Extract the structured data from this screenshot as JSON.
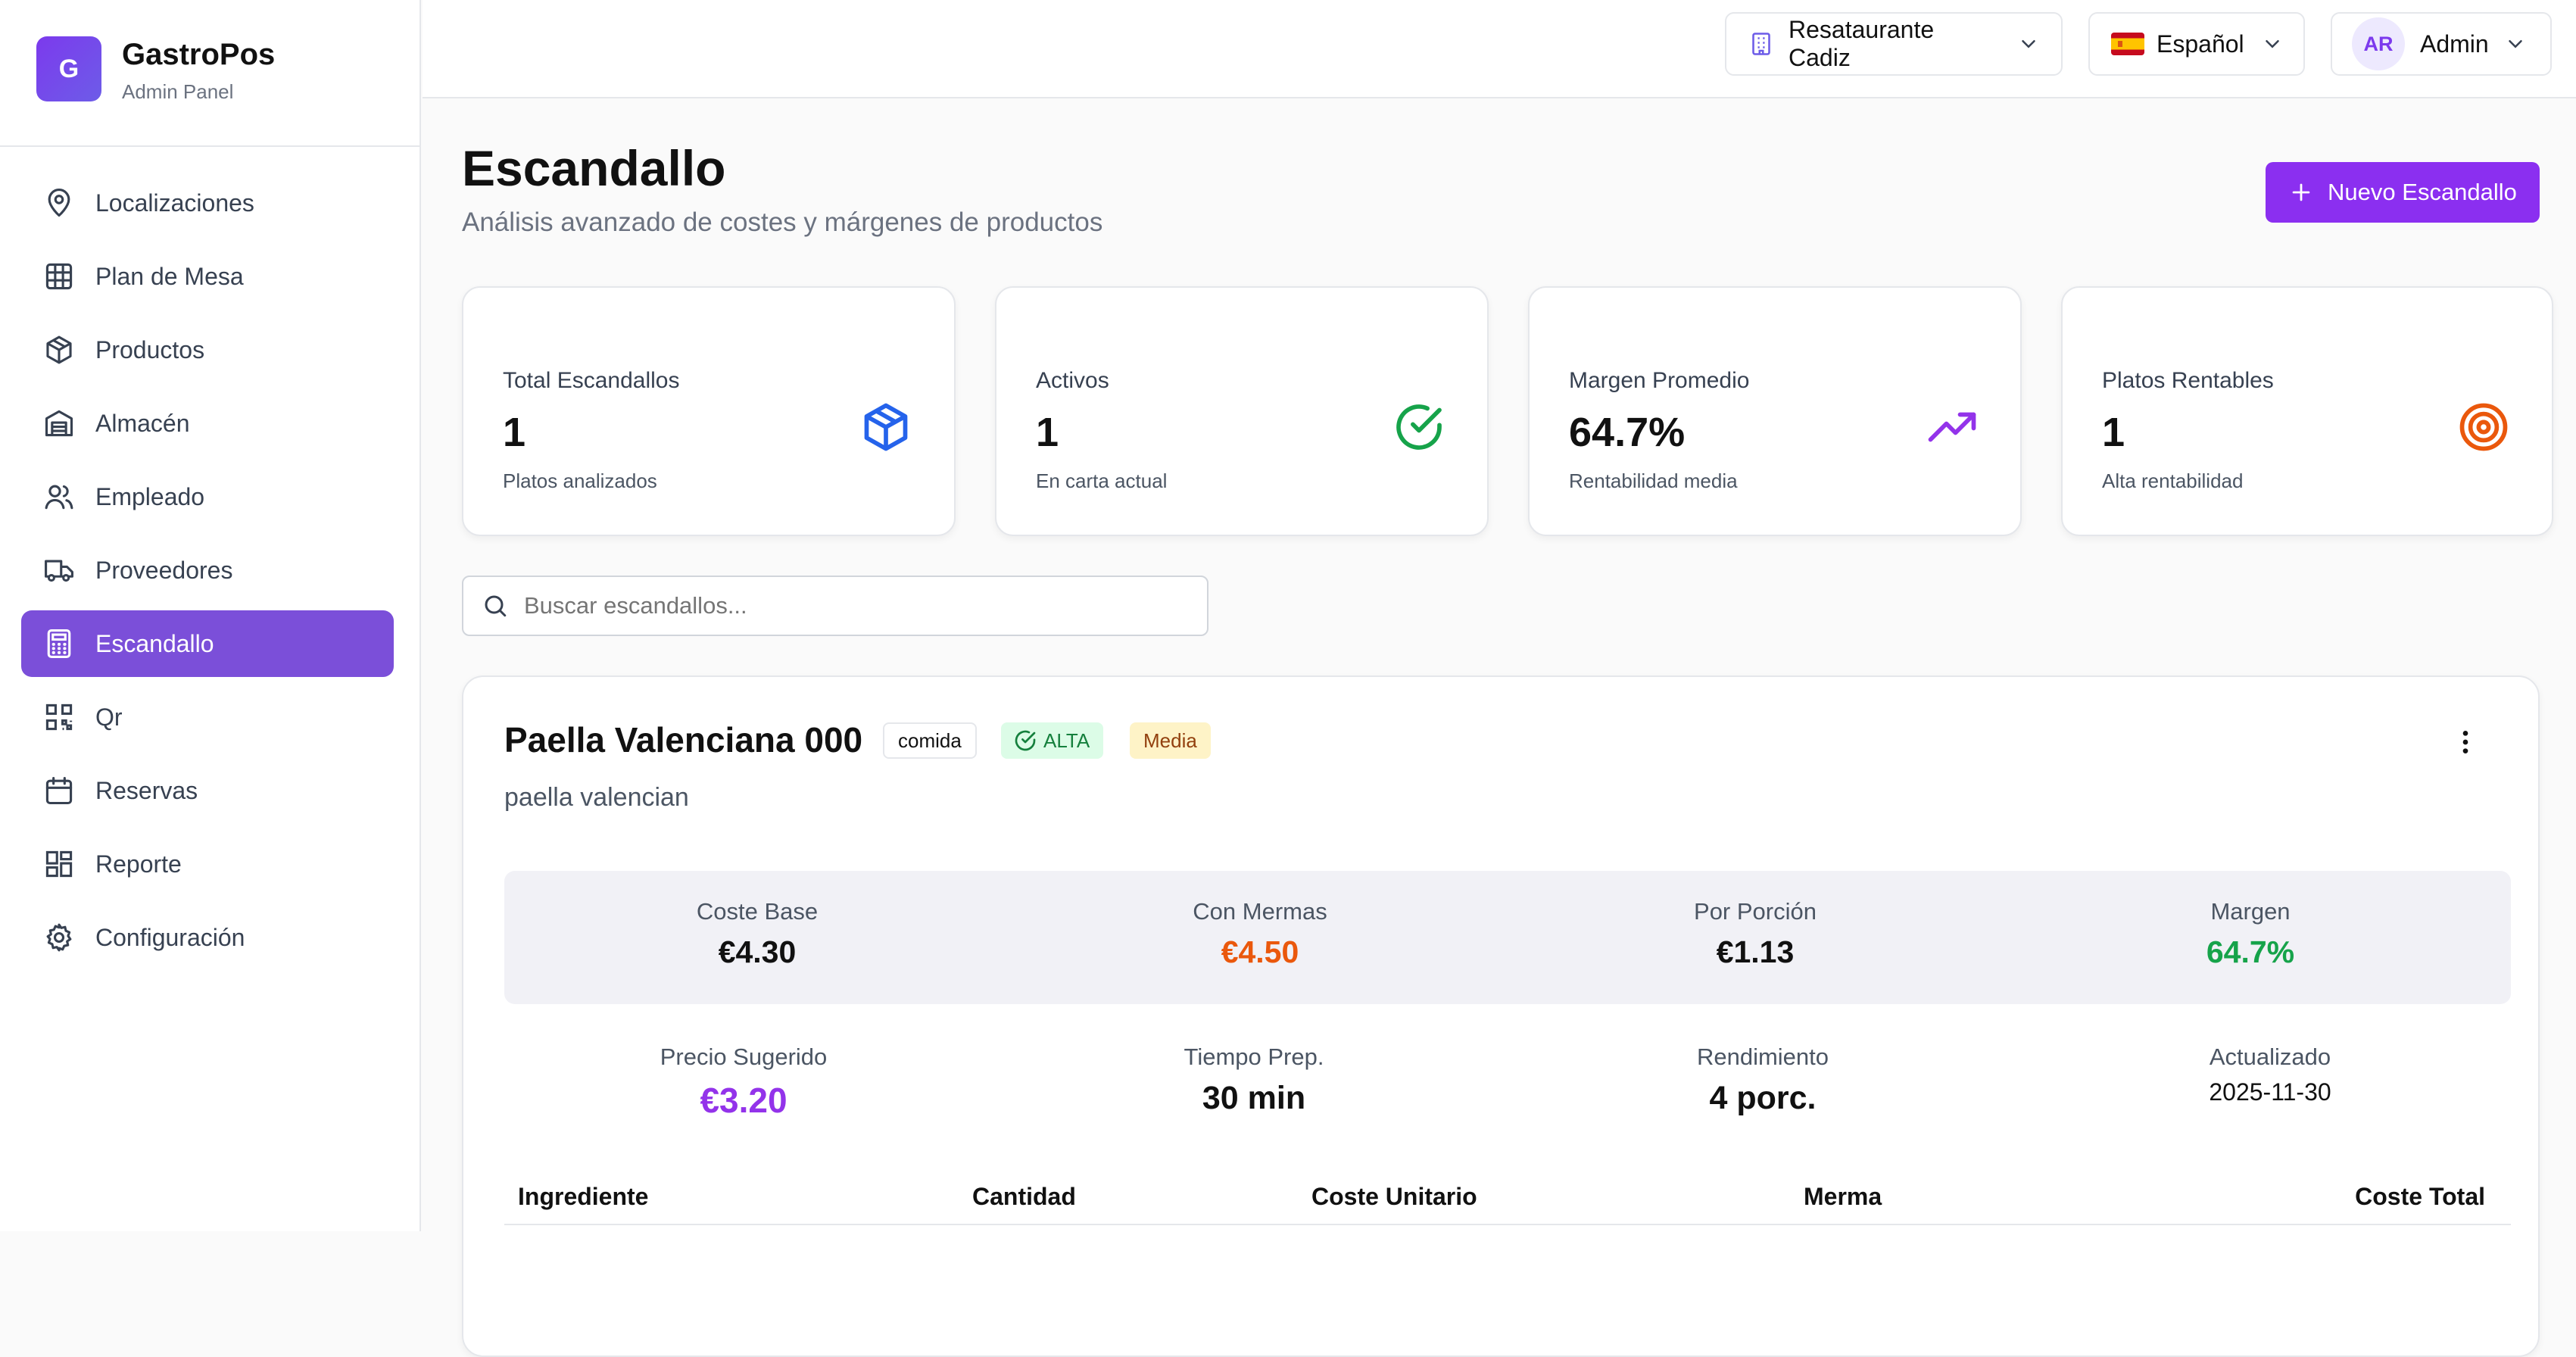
{
  "brand": {
    "logo_letter": "G",
    "name": "GastroPos",
    "subtitle": "Admin Panel"
  },
  "sidebar": {
    "items": [
      {
        "label": "Localizaciones",
        "icon": "map-pin-icon",
        "active": false
      },
      {
        "label": "Plan de Mesa",
        "icon": "grid-icon",
        "active": false
      },
      {
        "label": "Productos",
        "icon": "package-icon",
        "active": false
      },
      {
        "label": "Almacén",
        "icon": "warehouse-icon",
        "active": false
      },
      {
        "label": "Empleado",
        "icon": "users-icon",
        "active": false
      },
      {
        "label": "Proveedores",
        "icon": "truck-icon",
        "active": false
      },
      {
        "label": "Escandallo",
        "icon": "calculator-icon",
        "active": true
      },
      {
        "label": "Qr",
        "icon": "qr-code-icon",
        "active": false
      },
      {
        "label": "Reservas",
        "icon": "calendar-icon",
        "active": false
      },
      {
        "label": "Reporte",
        "icon": "dashboard-icon",
        "active": false
      },
      {
        "label": "Configuración",
        "icon": "gear-icon",
        "active": false
      }
    ]
  },
  "topbar": {
    "restaurant": "Resataurante Cadiz",
    "language": "Español",
    "avatar_initials": "AR",
    "user": "Admin"
  },
  "page": {
    "title": "Escandallo",
    "subtitle": "Análisis avanzado de costes y márgenes de productos",
    "new_button": "Nuevo Escandallo"
  },
  "stats": [
    {
      "label": "Total Escandallos",
      "value": "1",
      "caption": "Platos analizados",
      "icon": "box-icon",
      "color": "#2563eb"
    },
    {
      "label": "Activos",
      "value": "1",
      "caption": "En carta actual",
      "icon": "check-circle-icon",
      "color": "#16a34a"
    },
    {
      "label": "Margen Promedio",
      "value": "64.7%",
      "caption": "Rentabilidad media",
      "icon": "trending-up-icon",
      "color": "#9333ea"
    },
    {
      "label": "Platos Rentables",
      "value": "1",
      "caption": "Alta rentabilidad",
      "icon": "target-icon",
      "color": "#ea580c"
    }
  ],
  "search": {
    "placeholder": "Buscar escandallos..."
  },
  "dish": {
    "name": "Paella Valenciana 000",
    "category_badge": "comida",
    "profit_badge": "ALTA",
    "difficulty_badge": "Media",
    "description": "paella valencian",
    "metrics": [
      {
        "label": "Coste Base",
        "value": "€4.30",
        "color": "#111111"
      },
      {
        "label": "Con Mermas",
        "value": "€4.50",
        "color": "#ea580c"
      },
      {
        "label": "Por Porción",
        "value": "€1.13",
        "color": "#111111"
      },
      {
        "label": "Margen",
        "value": "64.7%",
        "color": "#16a34a"
      }
    ],
    "details": [
      {
        "label": "Precio Sugerido",
        "value": "€3.20",
        "color": "#9333ea"
      },
      {
        "label": "Tiempo Prep.",
        "value": "30 min",
        "color": "#111111"
      },
      {
        "label": "Rendimiento",
        "value": "4 porc.",
        "color": "#111111"
      },
      {
        "label": "Actualizado",
        "value": "2025-11-30",
        "color": "#111111"
      }
    ],
    "table_headers": [
      "Ingrediente",
      "Cantidad",
      "Coste Unitario",
      "Merma",
      "Coste Total"
    ]
  }
}
